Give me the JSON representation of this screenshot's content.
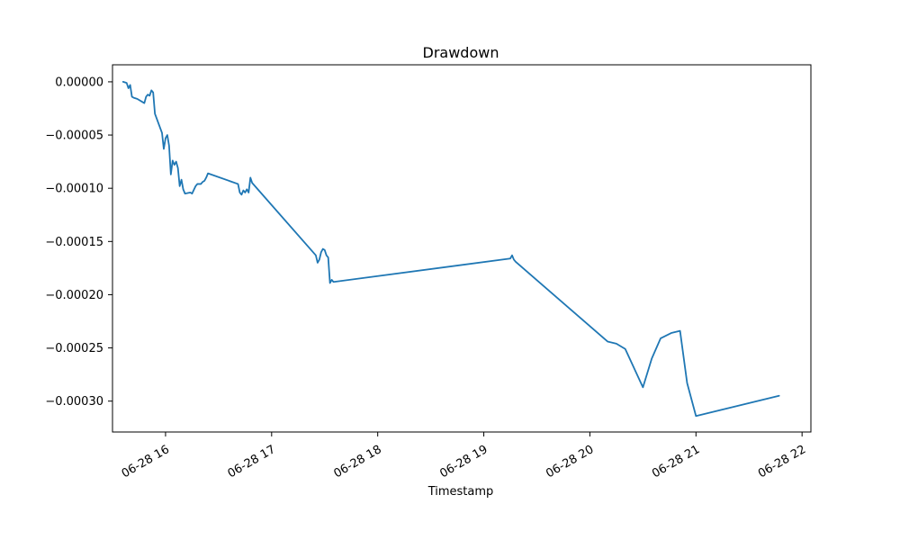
{
  "chart_data": {
    "type": "line",
    "title": "Drawdown",
    "xlabel": "Timestamp",
    "ylabel": "",
    "x_ticks": [
      "06-28 16",
      "06-28 17",
      "06-28 18",
      "06-28 19",
      "06-28 20",
      "06-28 21",
      "06-28 22"
    ],
    "y_ticks": [
      "0.00000",
      "−0.00005",
      "−0.00010",
      "−0.00015",
      "−0.00020",
      "−0.00025",
      "−0.00030"
    ],
    "y_tick_values": [
      0,
      -5e-05,
      -0.0001,
      -0.00015,
      -0.0002,
      -0.00025,
      -0.0003
    ],
    "xlim": [
      "2023-06-28 15:30",
      "2023-06-28 22:05"
    ],
    "ylim": [
      -0.000329,
      1.6e-05
    ],
    "grid": false,
    "series": [
      {
        "color": "#1f77b4",
        "x": [
          "2023-06-28 15:36",
          "2023-06-28 15:38",
          "2023-06-28 15:39",
          "2023-06-28 15:40",
          "2023-06-28 15:41",
          "2023-06-28 15:42",
          "2023-06-28 15:44",
          "2023-06-28 15:48",
          "2023-06-28 15:49",
          "2023-06-28 15:50",
          "2023-06-28 15:51",
          "2023-06-28 15:52",
          "2023-06-28 15:53",
          "2023-06-28 15:54",
          "2023-06-28 15:58",
          "2023-06-28 15:59",
          "2023-06-28 16:00",
          "2023-06-28 16:01",
          "2023-06-28 16:02",
          "2023-06-28 16:03",
          "2023-06-28 16:04",
          "2023-06-28 16:05",
          "2023-06-28 16:06",
          "2023-06-28 16:07",
          "2023-06-28 16:08",
          "2023-06-28 16:09",
          "2023-06-28 16:10",
          "2023-06-28 16:11",
          "2023-06-28 16:14",
          "2023-06-28 16:15",
          "2023-06-28 16:17",
          "2023-06-28 16:18",
          "2023-06-28 16:20",
          "2023-06-28 16:21",
          "2023-06-28 16:22",
          "2023-06-28 16:23",
          "2023-06-28 16:24",
          "2023-06-28 16:41",
          "2023-06-28 16:42",
          "2023-06-28 16:43",
          "2023-06-28 16:44",
          "2023-06-28 16:45",
          "2023-06-28 16:46",
          "2023-06-28 16:47",
          "2023-06-28 16:48",
          "2023-06-28 16:49",
          "2023-06-28 17:25",
          "2023-06-28 17:26",
          "2023-06-28 17:27",
          "2023-06-28 17:28",
          "2023-06-28 17:29",
          "2023-06-28 17:30",
          "2023-06-28 17:31",
          "2023-06-28 17:32",
          "2023-06-28 17:33",
          "2023-06-28 17:34",
          "2023-06-28 17:35",
          "2023-06-28 19:15",
          "2023-06-28 19:16",
          "2023-06-28 19:17",
          "2023-06-28 19:18",
          "2023-06-28 20:10",
          "2023-06-28 20:15",
          "2023-06-28 20:20",
          "2023-06-28 20:30",
          "2023-06-28 20:35",
          "2023-06-28 20:40",
          "2023-06-28 20:46",
          "2023-06-28 20:51",
          "2023-06-28 20:55",
          "2023-06-28 21:00",
          "2023-06-28 21:47"
        ],
        "y": [
          0,
          -1e-06,
          -6e-06,
          -3e-06,
          -1.4e-05,
          -1.5e-05,
          -1.6e-05,
          -2e-05,
          -1.4e-05,
          -1.2e-05,
          -1.3e-05,
          -8e-06,
          -1e-05,
          -3e-05,
          -4.8e-05,
          -6.3e-05,
          -5.3e-05,
          -5e-05,
          -6e-05,
          -8.7e-05,
          -7.4e-05,
          -7.8e-05,
          -7.5e-05,
          -8.1e-05,
          -9.8e-05,
          -9.2e-05,
          -0.000101,
          -0.000105,
          -0.000104,
          -0.000105,
          -9.8e-05,
          -9.6e-05,
          -9.6e-05,
          -9.4e-05,
          -9.3e-05,
          -9e-05,
          -8.6e-05,
          -9.6e-05,
          -0.000104,
          -0.000106,
          -0.000102,
          -0.000104,
          -0.000101,
          -0.000104,
          -9e-05,
          -9.5e-05,
          -0.000163,
          -0.00017,
          -0.000167,
          -0.00016,
          -0.000157,
          -0.000158,
          -0.000163,
          -0.000165,
          -0.000189,
          -0.000186,
          -0.000188,
          -0.000166,
          -0.000163,
          -0.000167,
          -0.000169,
          -0.000244,
          -0.000246,
          -0.000251,
          -0.000287,
          -0.00026,
          -0.000241,
          -0.000236,
          -0.000234,
          -0.000283,
          -0.000314,
          -0.000295
        ]
      }
    ]
  }
}
